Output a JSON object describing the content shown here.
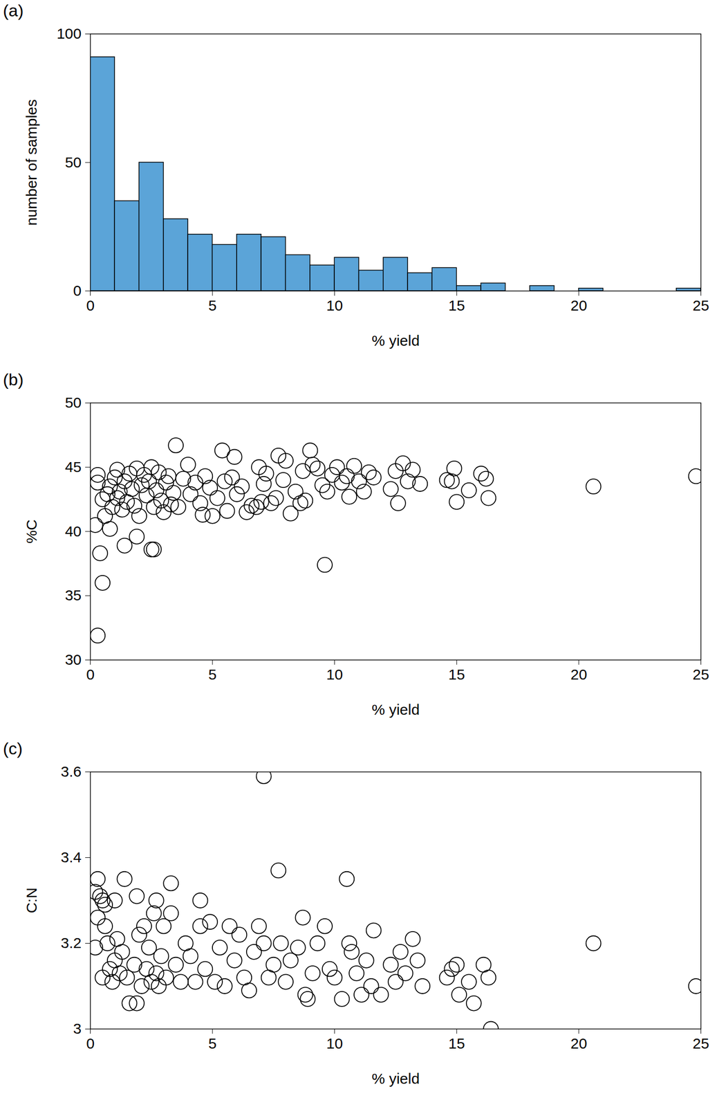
{
  "chart_data": [
    {
      "type": "histogram",
      "title": "(a)",
      "x_label": "% yield",
      "y_label": "number of samples",
      "bins": [
        0,
        1,
        2,
        3,
        4,
        5,
        6,
        7,
        8,
        9,
        10,
        11,
        12,
        13,
        14,
        15,
        16,
        17,
        18,
        19,
        20,
        21,
        22,
        23,
        24,
        25
      ],
      "values": [
        91,
        35,
        50,
        28,
        22,
        18,
        22,
        21,
        14,
        10,
        13,
        8,
        13,
        7,
        9,
        2,
        3,
        0,
        2,
        0,
        1,
        0,
        0,
        0,
        1
      ],
      "color": "#5ba4d8",
      "xlim": [
        0,
        25
      ],
      "xticks": [
        0,
        5,
        10,
        15,
        20,
        25
      ],
      "ylim": [
        0,
        100
      ],
      "yticks": [
        0,
        50,
        100
      ],
      "grid": false
    },
    {
      "type": "scatter",
      "title": "(b)",
      "x_label": "% yield",
      "y_label": "%C",
      "x": [
        0.3,
        0.5,
        0.4,
        1.4,
        1.9,
        2.6,
        2.5,
        9.6,
        0.2,
        0.8,
        0.3,
        0.3,
        0.5,
        0.6,
        0.7,
        0.8,
        0.9,
        1.0,
        1.1,
        1.2,
        1.1,
        1.3,
        1.4,
        1.5,
        1.6,
        1.7,
        1.8,
        1.9,
        2.0,
        2.1,
        2.2,
        2.3,
        2.4,
        2.5,
        2.6,
        2.7,
        2.8,
        2.9,
        3.0,
        3.1,
        3.2,
        3.3,
        3.5,
        3.4,
        3.6,
        3.8,
        4.0,
        4.1,
        4.3,
        4.5,
        4.6,
        4.7,
        4.9,
        5.0,
        5.2,
        5.4,
        5.5,
        5.6,
        5.8,
        5.9,
        6.0,
        6.2,
        6.4,
        6.6,
        6.8,
        6.9,
        7.0,
        7.1,
        7.2,
        7.4,
        7.6,
        7.7,
        7.9,
        8.0,
        8.2,
        8.4,
        8.6,
        8.7,
        8.8,
        9.0,
        9.1,
        9.3,
        9.5,
        9.7,
        9.9,
        10.1,
        10.3,
        10.5,
        10.6,
        10.8,
        11.0,
        11.2,
        11.4,
        11.6,
        12.3,
        12.5,
        12.6,
        12.8,
        13.0,
        13.2,
        13.5,
        14.6,
        14.8,
        14.9,
        15.0,
        15.5,
        16.0,
        16.3,
        16.2,
        20.6,
        24.8
      ],
      "values": [
        31.9,
        36.0,
        38.3,
        38.9,
        39.6,
        38.6,
        38.6,
        37.4,
        40.5,
        40.2,
        43.8,
        44.4,
        42.5,
        41.2,
        42.9,
        43.5,
        41.9,
        44.2,
        42.6,
        43.1,
        44.8,
        41.7,
        43.9,
        42.3,
        44.5,
        43.3,
        42.0,
        44.9,
        41.2,
        43.6,
        44.4,
        42.8,
        43.9,
        45.0,
        41.9,
        43.2,
        44.6,
        42.4,
        41.5,
        43.8,
        44.3,
        42.1,
        46.7,
        43.0,
        41.9,
        44.1,
        45.2,
        42.9,
        43.8,
        42.2,
        41.3,
        44.3,
        43.4,
        41.2,
        42.6,
        46.3,
        43.9,
        41.6,
        44.2,
        45.8,
        42.9,
        43.5,
        41.5,
        42.0,
        41.9,
        45.0,
        42.3,
        43.7,
        44.5,
        42.2,
        42.6,
        45.9,
        44.0,
        45.5,
        41.4,
        43.1,
        42.2,
        44.7,
        42.4,
        46.3,
        45.2,
        44.9,
        43.6,
        43.1,
        44.4,
        45.0,
        43.8,
        44.3,
        42.7,
        45.1,
        43.9,
        43.1,
        44.6,
        44.2,
        43.3,
        44.7,
        42.2,
        45.3,
        43.9,
        44.8,
        43.7,
        44.0,
        43.9,
        44.9,
        42.3,
        43.2,
        44.5,
        42.6,
        44.1,
        43.5,
        44.3
      ],
      "color": "#000000",
      "marker": "circle_open",
      "xlim": [
        0,
        25
      ],
      "xticks": [
        0,
        5,
        10,
        15,
        20,
        25
      ],
      "ylim": [
        30,
        50
      ],
      "yticks": [
        30,
        35,
        40,
        45,
        50
      ],
      "grid": false
    },
    {
      "type": "scatter",
      "title": "(c)",
      "x_label": "% yield",
      "y_label": "C:N",
      "x": [
        0.3,
        0.2,
        0.4,
        0.5,
        0.6,
        1.0,
        1.4,
        1.9,
        2.7,
        3.3,
        4.5,
        7.1,
        7.7,
        10.5,
        0.3,
        0.2,
        0.5,
        0.6,
        0.7,
        0.8,
        0.9,
        1.0,
        1.1,
        1.2,
        1.3,
        1.5,
        1.6,
        1.8,
        1.9,
        2.0,
        2.1,
        2.2,
        2.3,
        2.4,
        2.5,
        2.6,
        2.7,
        2.8,
        2.9,
        3.0,
        3.1,
        3.3,
        3.5,
        3.7,
        3.9,
        4.1,
        4.3,
        4.5,
        4.7,
        4.9,
        5.1,
        5.3,
        5.5,
        5.7,
        5.9,
        6.1,
        6.3,
        6.5,
        6.7,
        6.9,
        7.1,
        7.3,
        7.5,
        7.8,
        8.0,
        8.2,
        8.5,
        8.7,
        8.8,
        8.9,
        9.1,
        9.3,
        9.6,
        9.8,
        10.0,
        10.3,
        10.6,
        10.7,
        10.9,
        11.1,
        11.3,
        11.5,
        11.6,
        11.9,
        12.3,
        12.5,
        12.7,
        12.9,
        13.2,
        13.4,
        13.6,
        14.6,
        14.8,
        15.0,
        15.1,
        15.5,
        15.7,
        16.1,
        16.3,
        16.4,
        20.6,
        24.8
      ],
      "values": [
        3.35,
        3.32,
        3.31,
        3.3,
        3.29,
        3.3,
        3.35,
        3.31,
        3.3,
        3.34,
        3.3,
        3.59,
        3.37,
        3.35,
        3.26,
        3.19,
        3.12,
        3.24,
        3.2,
        3.14,
        3.11,
        3.16,
        3.21,
        3.13,
        3.18,
        3.12,
        3.06,
        3.15,
        3.06,
        3.22,
        3.1,
        3.24,
        3.14,
        3.19,
        3.11,
        3.27,
        3.13,
        3.1,
        3.17,
        3.24,
        3.12,
        3.27,
        3.15,
        3.11,
        3.2,
        3.17,
        3.11,
        3.24,
        3.14,
        3.25,
        3.11,
        3.19,
        3.1,
        3.24,
        3.16,
        3.22,
        3.12,
        3.09,
        3.18,
        3.24,
        3.2,
        3.12,
        3.15,
        3.2,
        3.11,
        3.16,
        3.19,
        3.26,
        3.08,
        3.07,
        3.13,
        3.2,
        3.24,
        3.14,
        3.12,
        3.07,
        3.2,
        3.18,
        3.13,
        3.08,
        3.16,
        3.1,
        3.23,
        3.08,
        3.15,
        3.11,
        3.18,
        3.13,
        3.21,
        3.16,
        3.1,
        3.12,
        3.14,
        3.15,
        3.08,
        3.11,
        3.06,
        3.15,
        3.12,
        3.0,
        3.2,
        3.1
      ],
      "color": "#000000",
      "marker": "circle_open",
      "xlim": [
        0,
        25
      ],
      "xticks": [
        0,
        5,
        10,
        15,
        20,
        25
      ],
      "ylim": [
        3,
        3.6
      ],
      "yticks": [
        3,
        3.2,
        3.4,
        3.6
      ],
      "grid": false
    }
  ]
}
